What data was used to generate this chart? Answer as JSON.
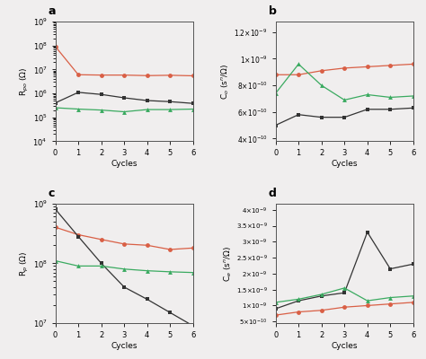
{
  "cycles": [
    0,
    1,
    2,
    3,
    4,
    5,
    6
  ],
  "a_red": [
    90000000.0,
    6000000.0,
    5800000.0,
    5800000.0,
    5500000.0,
    5700000.0,
    5400000.0
  ],
  "a_black": [
    400000.0,
    1100000.0,
    900000.0,
    650000.0,
    500000.0,
    450000.0,
    380000.0
  ],
  "a_green": [
    250000.0,
    220000.0,
    200000.0,
    170000.0,
    210000.0,
    210000.0,
    220000.0
  ],
  "a_ylabel": "R$_{po}$ ($\\Omega$)",
  "a_ylim": [
    10000.0,
    1000000000.0
  ],
  "b_red": [
    8.8e-10,
    8.8e-10,
    9.1e-10,
    9.3e-10,
    9.4e-10,
    9.5e-10,
    9.6e-10
  ],
  "b_green": [
    7.4e-10,
    9.6e-10,
    8e-10,
    6.9e-10,
    7.3e-10,
    7.1e-10,
    7.2e-10
  ],
  "b_black": [
    5e-10,
    5.8e-10,
    5.6e-10,
    5.6e-10,
    6.2e-10,
    6.2e-10,
    6.3e-10
  ],
  "b_ylabel": "C$_o$ (s$^n$/$\\Omega$)",
  "b_yticks": [
    4e-10,
    6e-10,
    8e-10,
    1e-09,
    1.2e-09
  ],
  "b_ylim": [
    3.8e-10,
    1.28e-09
  ],
  "c_red": [
    400000000.0,
    300000000.0,
    250000000.0,
    210000000.0,
    200000000.0,
    170000000.0,
    180000000.0
  ],
  "c_black": [
    800000000.0,
    280000000.0,
    100000000.0,
    40000000.0,
    25000000.0,
    15000000.0,
    9000000.0
  ],
  "c_green": [
    110000000.0,
    90000000.0,
    90000000.0,
    80000000.0,
    75000000.0,
    72000000.0,
    70000000.0
  ],
  "c_ylabel": "R$_p$ ($\\Omega$)",
  "c_ylim": [
    10000000.0,
    1000000000.0
  ],
  "d_red": [
    7e-10,
    8e-10,
    8.5e-10,
    9.5e-10,
    1e-09,
    1.05e-09,
    1.1e-09
  ],
  "d_black": [
    9e-10,
    1.15e-09,
    1.3e-09,
    1.4e-09,
    3.3e-09,
    2.15e-09,
    2.3e-09
  ],
  "d_green": [
    1.1e-09,
    1.2e-09,
    1.35e-09,
    1.55e-09,
    1.15e-09,
    1.25e-09,
    1.3e-09
  ],
  "d_ylabel": "C$_e$ (s$^n$/$\\Omega$)",
  "d_yticks": [
    5e-10,
    1e-09,
    1.5e-09,
    2e-09,
    2.5e-09,
    3e-09,
    3.5e-09,
    4e-09
  ],
  "d_ylim": [
    4.5e-10,
    4.2e-09
  ],
  "color_red": "#d95f45",
  "color_black": "#333333",
  "color_green": "#3aaa60",
  "xlabel": "Cycles",
  "xlim": [
    0,
    6
  ],
  "xticks": [
    0,
    1,
    2,
    3,
    4,
    5,
    6
  ],
  "bg_color": "#f0eeee"
}
